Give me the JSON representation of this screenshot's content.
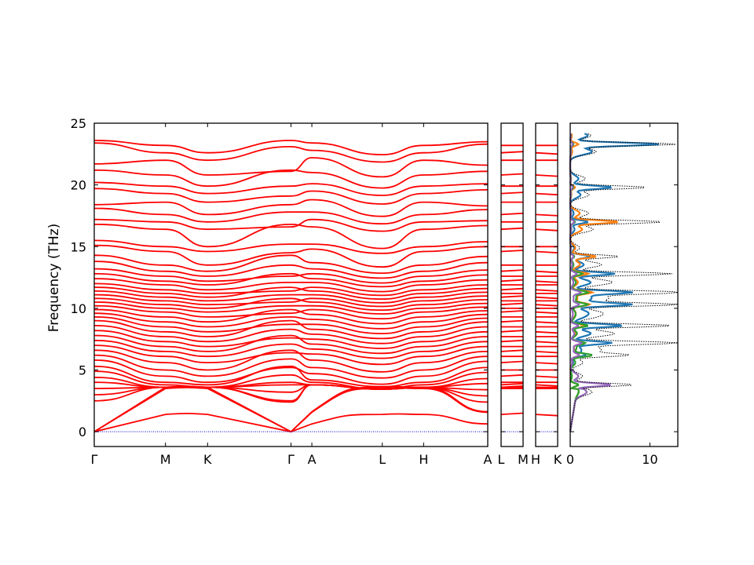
{
  "chart_data": {
    "type": "line",
    "title": "",
    "ylabel": "Frequency (THz)",
    "ylim": [
      -1.2,
      25
    ],
    "yticks": [
      0,
      5,
      10,
      15,
      20,
      25
    ],
    "band_color": "#ff0000",
    "zero_line_color": "#0000cc",
    "panels": [
      {
        "name": "Γ-M-K-Γ-A-L-H-A",
        "tick_labels": [
          "Γ",
          "M",
          "K",
          "Γ",
          "A",
          "L",
          "H",
          "A"
        ],
        "tick_positions": [
          0,
          0.181,
          0.288,
          0.5,
          0.553,
          0.732,
          0.837,
          1.0
        ]
      },
      {
        "name": "L-M",
        "tick_labels": [
          "L",
          "M"
        ],
        "tick_positions": [
          0,
          1
        ]
      },
      {
        "name": "H-K",
        "tick_labels": [
          "H",
          "K"
        ],
        "tick_positions": [
          0,
          1
        ]
      }
    ],
    "bands_gamma": [
      23.6,
      23.4,
      21.7,
      21.2,
      20.2,
      19.7,
      18.4,
      18.1,
      17.2,
      16.8,
      15.5,
      15.1,
      14.3,
      13.8,
      13.2,
      12.8,
      12.4,
      12.0,
      11.7,
      11.4,
      11.1,
      10.8,
      10.5,
      10.2,
      9.9,
      9.6,
      9.3,
      9.0,
      8.6,
      8.2,
      7.8,
      7.4,
      7.0,
      6.6,
      6.2,
      5.8,
      5.3,
      4.9,
      4.4,
      4.0,
      3.5,
      3.0,
      2.5
    ],
    "band_crossings_zone_boundary": [
      23.2,
      22.6,
      22.0,
      20.8,
      19.9,
      19.3,
      18.6,
      17.6,
      17.0,
      16.4,
      15.0,
      14.6,
      13.5,
      13.0,
      12.6,
      12.2,
      11.9,
      11.5,
      11.2,
      10.9,
      10.6,
      10.3,
      10.0,
      9.7,
      9.3,
      8.9,
      8.5,
      8.1,
      7.7,
      7.3,
      6.9,
      6.5,
      6.1,
      5.6,
      5.0,
      4.5,
      4.0,
      3.8,
      3.6
    ],
    "acoustic_max": [
      3.6,
      3.5,
      1.4
    ],
    "dos": {
      "xlim": [
        0,
        13.5
      ],
      "xticks": [
        0,
        10
      ],
      "series_colors": [
        "#1f77b4",
        "#ff7f0e",
        "#2ca02c",
        "#9467bd"
      ],
      "total_color": "#000000",
      "peaks": [
        {
          "freq": 23.3,
          "total": 13.1,
          "part": [
            11.0,
            1.0,
            0.4,
            0.3
          ]
        },
        {
          "freq": 19.8,
          "total": 9.5,
          "part": [
            5.2,
            0.6,
            0.4,
            0.3
          ]
        },
        {
          "freq": 17.0,
          "total": 11.5,
          "part": [
            2.2,
            6.0,
            0.6,
            0.5
          ]
        },
        {
          "freq": 14.2,
          "total": 6.0,
          "part": [
            2.5,
            3.2,
            0.5,
            0.4
          ]
        },
        {
          "freq": 12.8,
          "total": 12.5,
          "part": [
            5.5,
            2.2,
            1.5,
            0.8
          ]
        },
        {
          "freq": 11.3,
          "total": 13.0,
          "part": [
            7.0,
            2.5,
            2.0,
            1.2
          ]
        },
        {
          "freq": 10.3,
          "total": 12.4,
          "part": [
            7.2,
            2.2,
            2.0,
            1.0
          ]
        },
        {
          "freq": 8.6,
          "total": 12.6,
          "part": [
            6.5,
            1.8,
            2.2,
            1.0
          ]
        },
        {
          "freq": 7.2,
          "total": 12.7,
          "part": [
            5.0,
            1.5,
            1.6,
            1.3
          ]
        },
        {
          "freq": 6.2,
          "total": 6.4,
          "part": [
            1.5,
            1.0,
            2.6,
            1.0
          ]
        },
        {
          "freq": 3.8,
          "total": 7.8,
          "part": [
            1.0,
            1.0,
            1.0,
            5.1
          ]
        }
      ]
    }
  }
}
